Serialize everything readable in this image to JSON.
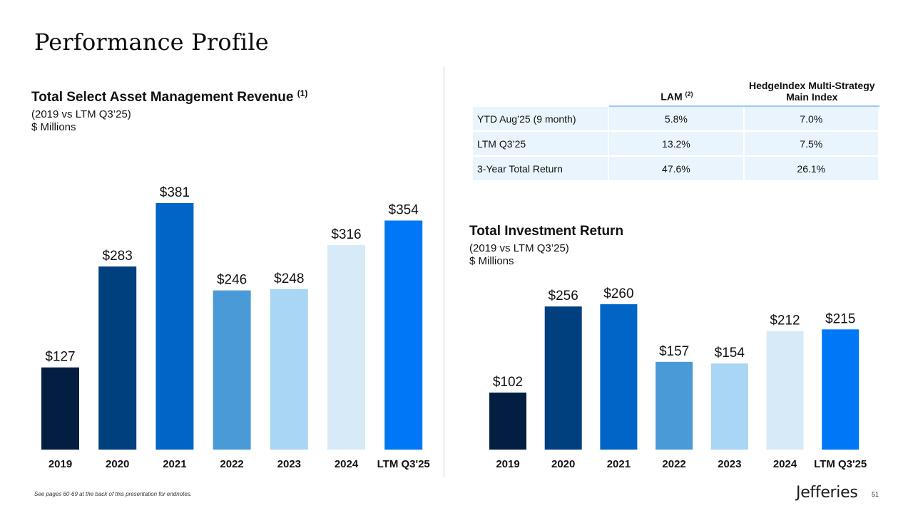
{
  "page": {
    "title": "Performance Profile",
    "footnote": "See pages 60-69 at the back of this presentation for endnotes.",
    "logo": "Jefferies",
    "page_number": "51"
  },
  "left_chart": {
    "title": "Total Select Asset Management Revenue",
    "title_note": "(1)",
    "subtitle": "(2019 vs LTM Q3’25)",
    "units": "$ Millions"
  },
  "right_chart": {
    "title": "Total Investment Return",
    "subtitle": "(2019 vs LTM Q3’25)",
    "units": "$ Millions"
  },
  "table": {
    "col_lam": "LAM",
    "col_lam_note": "(2)",
    "col_hedge": "HedgeIndex Multi-Strategy Main Index",
    "rows": [
      {
        "label": "YTD Aug’25 (9 month)",
        "lam": "5.8%",
        "hedge": "7.0%"
      },
      {
        "label": "LTM Q3’25",
        "lam": "13.2%",
        "hedge": "7.5%"
      },
      {
        "label": "3-Year Total Return",
        "lam": "47.6%",
        "hedge": "26.1%"
      }
    ]
  },
  "colors": [
    "#041e42",
    "#00407f",
    "#0065c6",
    "#4a9ad8",
    "#a8d6f4",
    "#d7eaf8",
    "#0077f6"
  ],
  "chart_data": [
    {
      "type": "bar",
      "title": "Total Select Asset Management Revenue",
      "ylabel": "$ Millions",
      "categories": [
        "2019",
        "2020",
        "2021",
        "2022",
        "2023",
        "2024",
        "LTM Q3'25"
      ],
      "values": [
        127,
        283,
        381,
        246,
        248,
        316,
        354
      ],
      "labels": [
        "$127",
        "$283",
        "$381",
        "$246",
        "$248",
        "$316",
        "$354"
      ],
      "ylim": [
        0,
        381
      ]
    },
    {
      "type": "bar",
      "title": "Total Investment Return",
      "ylabel": "$ Millions",
      "categories": [
        "2019",
        "2020",
        "2021",
        "2022",
        "2023",
        "2024",
        "LTM Q3'25"
      ],
      "values": [
        102,
        256,
        260,
        157,
        154,
        212,
        215
      ],
      "labels": [
        "$102",
        "$256",
        "$260",
        "$157",
        "$154",
        "$212",
        "$215"
      ],
      "ylim": [
        0,
        260
      ]
    }
  ]
}
